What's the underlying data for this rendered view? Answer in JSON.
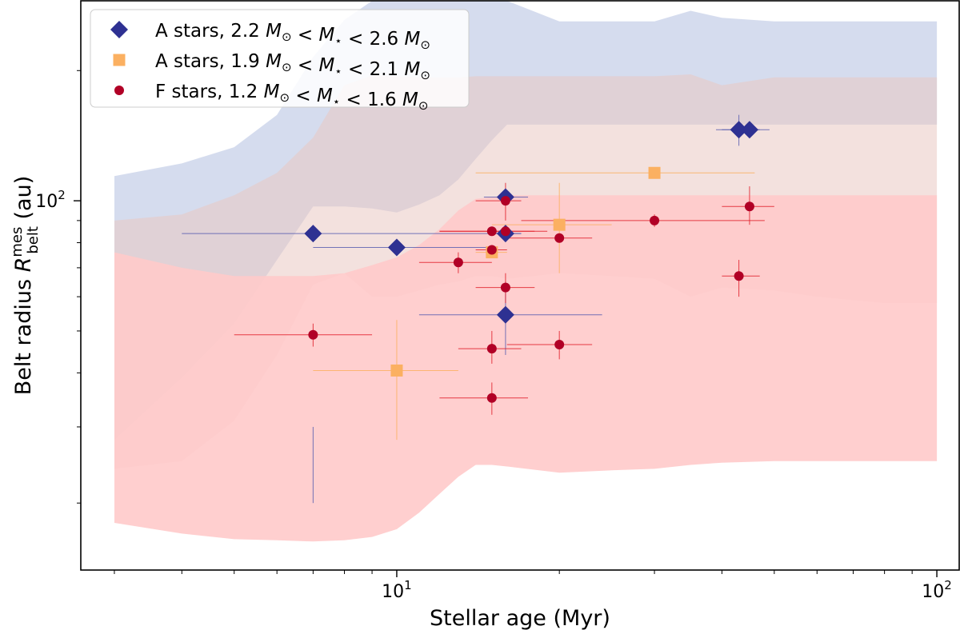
{
  "chart_data": {
    "type": "scatter",
    "xscale": "log",
    "yscale": "log",
    "xlim": [
      2.6,
      110
    ],
    "ylim": [
      14,
      290
    ],
    "xlabel": "Stellar age (Myr)",
    "ylabel_prefix": "Belt radius ",
    "ylabel_symbol": "R",
    "ylabel_sup": "mes",
    "ylabel_sub": "belt",
    "ylabel_suffix": " (au)",
    "x_major_ticks": [
      {
        "value": 10,
        "base": "10",
        "exp": "1"
      },
      {
        "value": 100,
        "base": "10",
        "exp": "2"
      }
    ],
    "y_major_ticks": [
      {
        "value": 100,
        "base": "10",
        "exp": "2"
      }
    ],
    "x_minor_ticks": [
      3,
      4,
      5,
      6,
      7,
      8,
      9,
      20,
      30,
      40,
      50,
      60,
      70,
      80,
      90
    ],
    "y_minor_ticks": [
      20,
      30,
      40,
      50,
      60,
      70,
      80,
      90,
      200
    ],
    "bands": [
      {
        "name": "A stars 2.2-2.6 band",
        "color": "#b3bfe0",
        "opacity": 0.55,
        "x": [
          3,
          4,
          5,
          6,
          7,
          8,
          9,
          10,
          11,
          12,
          13,
          14,
          15,
          16,
          20,
          25,
          30,
          35,
          40,
          50,
          60,
          80,
          100
        ],
        "upper": [
          114,
          122,
          133,
          158,
          215,
          262,
          290,
          290,
          290,
          290,
          290,
          290,
          290,
          290,
          260,
          260,
          260,
          275,
          265,
          260,
          260,
          260,
          260
        ],
        "lower": [
          28,
          39,
          52,
          73,
          97,
          97,
          96,
          94,
          98,
          103,
          112,
          125,
          138,
          150,
          150,
          150,
          150,
          150,
          150,
          150,
          150,
          150,
          150
        ]
      },
      {
        "name": "A stars 1.9-2.1 band",
        "color": "#e9c8c2",
        "opacity": 0.55,
        "x": [
          3,
          4,
          5,
          6,
          7,
          8,
          9,
          10,
          11,
          12,
          13,
          14,
          15,
          16,
          20,
          25,
          30,
          35,
          40,
          50,
          60,
          80,
          100
        ],
        "upper": [
          90,
          93,
          103,
          116,
          140,
          185,
          195,
          194,
          193,
          193,
          193,
          194,
          194,
          194,
          194,
          194,
          194,
          196,
          185,
          193,
          193,
          193,
          193
        ],
        "lower": [
          24,
          25,
          31,
          44,
          64,
          68,
          60,
          60,
          62,
          64,
          65,
          67,
          67,
          66,
          68,
          67,
          66,
          60,
          63,
          62,
          60,
          58,
          58
        ],
        "extra_color": "#f8c09a"
      },
      {
        "name": "F stars 1.2-1.6 band",
        "color": "#ffcaca",
        "opacity": 0.9,
        "x": [
          3,
          4,
          5,
          6,
          7,
          8,
          9,
          10,
          11,
          12,
          13,
          14,
          15,
          16,
          20,
          25,
          30,
          35,
          40,
          50,
          60,
          80,
          100
        ],
        "upper": [
          76,
          70,
          67,
          67,
          67,
          68,
          71,
          74,
          79,
          86,
          95,
          101,
          102,
          103,
          103,
          103,
          103,
          103,
          103,
          103,
          103,
          103,
          103
        ],
        "lower": [
          18,
          17,
          16.5,
          16.4,
          16.3,
          16.4,
          16.7,
          17.4,
          19,
          21,
          23,
          24.5,
          24.5,
          24.3,
          23.5,
          23.8,
          24,
          24.5,
          24.8,
          25,
          25,
          25,
          25
        ]
      }
    ],
    "series": [
      {
        "name": "A stars, 2.2 M⊙ < M⋆ < 2.6 M⊙",
        "marker": "diamond",
        "color": "#2e3192",
        "points": [
          {
            "x": 7,
            "y": 84,
            "xerr": [
              4,
              17
            ],
            "yerr": [
              20,
              30
            ]
          },
          {
            "x": 10,
            "y": 78,
            "xerr": [
              7,
              15
            ],
            "yerr": [
              0,
              0
            ]
          },
          {
            "x": 15.9,
            "y": 102,
            "xerr": [
              14.5,
              17.5
            ],
            "yerr": [
              0,
              0
            ]
          },
          {
            "x": 15.9,
            "y": 84,
            "xerr": [
              15,
              17
            ],
            "yerr": [
              0,
              0
            ]
          },
          {
            "x": 15.9,
            "y": 54.5,
            "xerr": [
              11,
              24
            ],
            "yerr": [
              44,
              65
            ]
          },
          {
            "x": 43,
            "y": 146,
            "xerr": [
              39,
              47
            ],
            "yerr": [
              134,
              158
            ]
          },
          {
            "x": 45,
            "y": 146,
            "xerr": [
              40,
              49
            ],
            "yerr": [
              0,
              0
            ]
          }
        ]
      },
      {
        "name": "A stars, 1.9 M⊙ < M⋆ < 2.1 M⊙",
        "marker": "square",
        "color": "#fbb061",
        "points": [
          {
            "x": 10,
            "y": 40.5,
            "xerr": [
              7,
              13
            ],
            "yerr": [
              28,
              53
            ]
          },
          {
            "x": 15,
            "y": 76,
            "xerr": [
              14,
              16
            ],
            "yerr": [
              0,
              0
            ]
          },
          {
            "x": 20,
            "y": 88,
            "xerr": [
              15,
              25
            ],
            "yerr": [
              68,
              110
            ]
          },
          {
            "x": 30,
            "y": 116,
            "xerr": [
              14,
              46
            ],
            "yerr": [
              0,
              0
            ]
          }
        ]
      },
      {
        "name": "F stars, 1.2 M⊙ < M⋆ < 1.6 M⊙",
        "marker": "circle",
        "color": "#b10026",
        "points": [
          {
            "x": 7,
            "y": 49,
            "xerr": [
              5,
              9
            ],
            "yerr": [
              46,
              52
            ]
          },
          {
            "x": 13,
            "y": 72,
            "xerr": [
              11,
              15
            ],
            "yerr": [
              68,
              76
            ]
          },
          {
            "x": 15,
            "y": 77,
            "xerr": [
              14,
              16
            ],
            "yerr": [
              0,
              0
            ]
          },
          {
            "x": 15,
            "y": 85,
            "xerr": [
              12,
              18
            ],
            "yerr": [
              0,
              0
            ]
          },
          {
            "x": 15,
            "y": 45.5,
            "xerr": [
              13,
              17
            ],
            "yerr": [
              42,
              50
            ]
          },
          {
            "x": 15,
            "y": 35,
            "xerr": [
              12,
              17.5
            ],
            "yerr": [
              32,
              38
            ]
          },
          {
            "x": 15.9,
            "y": 85,
            "xerr": [
              12,
              19
            ],
            "yerr": [
              0,
              0
            ]
          },
          {
            "x": 15.9,
            "y": 100,
            "xerr": [
              14,
              17
            ],
            "yerr": [
              90,
              110
            ]
          },
          {
            "x": 15.9,
            "y": 63,
            "xerr": [
              14,
              18
            ],
            "yerr": [
              58,
              68
            ]
          },
          {
            "x": 20,
            "y": 46.5,
            "xerr": [
              16,
              23
            ],
            "yerr": [
              43,
              50
            ]
          },
          {
            "x": 20,
            "y": 82,
            "xerr": [
              16,
              23
            ],
            "yerr": [
              0,
              0
            ]
          },
          {
            "x": 30,
            "y": 90,
            "xerr": [
              17,
              48
            ],
            "yerr": [
              87,
              93
            ]
          },
          {
            "x": 43,
            "y": 67,
            "xerr": [
              40,
              47
            ],
            "yerr": [
              60,
              73
            ]
          },
          {
            "x": 45,
            "y": 97,
            "xerr": [
              40,
              50
            ],
            "yerr": [
              88,
              108
            ]
          }
        ]
      }
    ],
    "legend": {
      "position": "top-left",
      "entries": [
        {
          "label_prefix": "A stars, 2.2 ",
          "label_mid1": " < ",
          "label_mid2": " < 2.6 "
        },
        {
          "label_prefix": "A stars, 1.9 ",
          "label_mid1": " < ",
          "label_mid2": " < 2.1 "
        },
        {
          "label_prefix": "F stars, 1.2 ",
          "label_mid1": " < ",
          "label_mid2": " < 1.6 "
        }
      ],
      "msun": "M",
      "msun_sub": "⊙",
      "mstar": "M",
      "mstar_sub": "⋆"
    }
  }
}
